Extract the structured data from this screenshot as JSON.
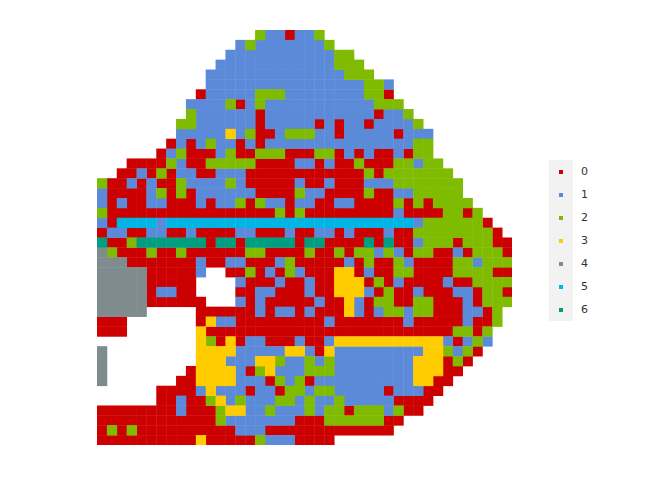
{
  "chart_data": {
    "type": "scatter",
    "marker": "square",
    "tick_labels": false,
    "legend": "right",
    "series": [
      {
        "name": "0",
        "color": "#cc0000"
      },
      {
        "name": "1",
        "color": "#5b8ad8"
      },
      {
        "name": "2",
        "color": "#7fbb00"
      },
      {
        "name": "3",
        "color": "#ffcc00"
      },
      {
        "name": "4",
        "color": "#7f8c8d"
      },
      {
        "name": "5",
        "color": "#00b4e4"
      },
      {
        "name": "6",
        "color": "#009e80"
      }
    ],
    "cells": [
      [
        null,
        null,
        null,
        null,
        null,
        null,
        null,
        null,
        null,
        null,
        null,
        null,
        null,
        null,
        null,
        null,
        2,
        1,
        1,
        0,
        1,
        1,
        2
      ],
      [
        null,
        null,
        null,
        null,
        null,
        null,
        null,
        null,
        null,
        null,
        null,
        null,
        null,
        null,
        1,
        2,
        1,
        1,
        1,
        1,
        1,
        1,
        1,
        2
      ],
      [
        null,
        null,
        null,
        null,
        null,
        null,
        null,
        null,
        null,
        null,
        null,
        null,
        null,
        1,
        1,
        1,
        1,
        1,
        1,
        1,
        1,
        1,
        1,
        1,
        2,
        2
      ],
      [
        null,
        null,
        null,
        null,
        null,
        null,
        null,
        null,
        null,
        null,
        null,
        null,
        1,
        1,
        1,
        1,
        1,
        1,
        1,
        1,
        1,
        1,
        1,
        1,
        2,
        2,
        2
      ],
      [
        null,
        null,
        null,
        null,
        null,
        null,
        null,
        null,
        null,
        null,
        null,
        1,
        1,
        1,
        1,
        1,
        1,
        1,
        1,
        1,
        1,
        1,
        1,
        1,
        1,
        2,
        2,
        2
      ],
      [
        null,
        null,
        null,
        null,
        null,
        null,
        null,
        null,
        null,
        null,
        null,
        1,
        1,
        1,
        1,
        1,
        1,
        1,
        1,
        1,
        1,
        1,
        1,
        1,
        1,
        1,
        1,
        2,
        2,
        1
      ],
      [
        null,
        null,
        null,
        null,
        null,
        null,
        null,
        null,
        null,
        null,
        0,
        1,
        1,
        1,
        1,
        1,
        2,
        2,
        2,
        1,
        1,
        1,
        1,
        1,
        1,
        1,
        1,
        2,
        2,
        0
      ],
      [
        null,
        null,
        null,
        null,
        null,
        null,
        null,
        null,
        null,
        1,
        1,
        1,
        1,
        2,
        0,
        1,
        2,
        1,
        1,
        1,
        1,
        1,
        1,
        1,
        1,
        1,
        1,
        1,
        2,
        2,
        2
      ],
      [
        null,
        null,
        null,
        null,
        null,
        null,
        null,
        null,
        null,
        2,
        1,
        1,
        1,
        1,
        1,
        1,
        0,
        1,
        1,
        1,
        1,
        1,
        1,
        1,
        1,
        1,
        1,
        1,
        0,
        1,
        1,
        2
      ],
      [
        null,
        null,
        null,
        null,
        null,
        null,
        null,
        null,
        2,
        2,
        1,
        1,
        1,
        1,
        1,
        1,
        0,
        1,
        1,
        1,
        1,
        1,
        0,
        1,
        0,
        1,
        1,
        0,
        1,
        1,
        1,
        1,
        2
      ],
      [
        null,
        null,
        null,
        null,
        null,
        null,
        null,
        null,
        1,
        1,
        1,
        1,
        1,
        3,
        1,
        2,
        0,
        0,
        1,
        2,
        2,
        2,
        1,
        1,
        0,
        1,
        1,
        1,
        1,
        1,
        0,
        1,
        1,
        1
      ],
      [
        null,
        null,
        null,
        null,
        null,
        null,
        null,
        0,
        1,
        0,
        1,
        2,
        1,
        1,
        0,
        1,
        0,
        1,
        1,
        1,
        1,
        1,
        1,
        1,
        1,
        1,
        1,
        1,
        1,
        1,
        1,
        1,
        2,
        2
      ],
      [
        null,
        null,
        null,
        null,
        null,
        null,
        0,
        1,
        2,
        0,
        0,
        0,
        1,
        2,
        0,
        0,
        2,
        2,
        2,
        0,
        0,
        0,
        2,
        2,
        0,
        1,
        0,
        1,
        0,
        0,
        1,
        0,
        2,
        2
      ],
      [
        null,
        null,
        null,
        0,
        0,
        0,
        0,
        2,
        1,
        0,
        0,
        2,
        2,
        2,
        2,
        2,
        0,
        0,
        0,
        0,
        1,
        1,
        0,
        1,
        0,
        0,
        2,
        0,
        0,
        0,
        2,
        2,
        1,
        2,
        2
      ],
      [
        null,
        null,
        0,
        0,
        1,
        0,
        2,
        0,
        1,
        1,
        0,
        0,
        1,
        1,
        1,
        0,
        0,
        0,
        0,
        0,
        0,
        0,
        0,
        0,
        0,
        0,
        0,
        2,
        0,
        2,
        2,
        2,
        2,
        2,
        2,
        2
      ],
      [
        2,
        0,
        0,
        1,
        0,
        1,
        0,
        0,
        2,
        1,
        1,
        1,
        1,
        2,
        1,
        0,
        0,
        0,
        0,
        0,
        1,
        0,
        0,
        1,
        0,
        0,
        0,
        1,
        1,
        1,
        2,
        2,
        2,
        2,
        2,
        2,
        2
      ],
      [
        1,
        0,
        0,
        0,
        0,
        1,
        2,
        0,
        2,
        0,
        1,
        1,
        1,
        1,
        1,
        1,
        0,
        0,
        0,
        0,
        2,
        1,
        1,
        0,
        0,
        0,
        0,
        2,
        0,
        0,
        1,
        1,
        2,
        2,
        2,
        2,
        2
      ],
      [
        1,
        0,
        1,
        0,
        0,
        1,
        1,
        0,
        0,
        0,
        1,
        0,
        1,
        1,
        2,
        0,
        2,
        1,
        1,
        0,
        1,
        1,
        0,
        0,
        1,
        1,
        0,
        0,
        0,
        0,
        2,
        0,
        2,
        0,
        2,
        2,
        2,
        2
      ],
      [
        2,
        0,
        0,
        0,
        0,
        0,
        0,
        0,
        0,
        0,
        0,
        0,
        0,
        0,
        0,
        0,
        0,
        0,
        2,
        0,
        2,
        0,
        0,
        0,
        0,
        0,
        0,
        0,
        0,
        0,
        1,
        0,
        0,
        0,
        0,
        2,
        2,
        0,
        2
      ],
      [
        1,
        0,
        5,
        5,
        5,
        5,
        1,
        5,
        5,
        5,
        5,
        5,
        5,
        5,
        5,
        5,
        5,
        5,
        5,
        5,
        5,
        5,
        5,
        5,
        5,
        5,
        5,
        5,
        5,
        5,
        5,
        5,
        1,
        2,
        2,
        2,
        2,
        2,
        2,
        0
      ],
      [
        0,
        1,
        1,
        0,
        0,
        1,
        1,
        0,
        0,
        1,
        0,
        0,
        0,
        0,
        1,
        1,
        0,
        0,
        0,
        1,
        0,
        0,
        1,
        1,
        0,
        1,
        0,
        0,
        0,
        1,
        0,
        0,
        2,
        2,
        2,
        2,
        2,
        2,
        2,
        2,
        0
      ],
      [
        6,
        0,
        0,
        2,
        6,
        6,
        6,
        6,
        6,
        6,
        6,
        0,
        6,
        6,
        0,
        6,
        6,
        6,
        6,
        6,
        0,
        6,
        6,
        0,
        0,
        0,
        0,
        6,
        0,
        6,
        0,
        0,
        1,
        2,
        2,
        2,
        0,
        2,
        2,
        2,
        0,
        0
      ],
      [
        4,
        2,
        0,
        0,
        0,
        2,
        0,
        0,
        2,
        0,
        0,
        0,
        0,
        0,
        0,
        2,
        2,
        0,
        0,
        0,
        0,
        2,
        0,
        0,
        2,
        0,
        2,
        2,
        1,
        2,
        1,
        0,
        2,
        2,
        0,
        0,
        1,
        0,
        2,
        2,
        2,
        0
      ],
      [
        4,
        4,
        4,
        0,
        0,
        0,
        0,
        0,
        0,
        0,
        1,
        0,
        0,
        1,
        1,
        0,
        0,
        0,
        1,
        2,
        0,
        0,
        0,
        0,
        0,
        1,
        0,
        2,
        0,
        0,
        2,
        1,
        0,
        0,
        0,
        0,
        2,
        2,
        1,
        2,
        2,
        2
      ],
      [
        4,
        4,
        4,
        4,
        4,
        0,
        0,
        0,
        0,
        0,
        1,
        null,
        null,
        0,
        0,
        2,
        0,
        1,
        0,
        2,
        1,
        0,
        0,
        0,
        3,
        3,
        0,
        1,
        0,
        0,
        2,
        2,
        0,
        0,
        0,
        0,
        2,
        2,
        2,
        2,
        0,
        0
      ],
      [
        4,
        4,
        4,
        4,
        4,
        0,
        0,
        0,
        0,
        0,
        null,
        null,
        null,
        null,
        1,
        0,
        0,
        0,
        1,
        0,
        0,
        1,
        0,
        0,
        3,
        3,
        3,
        0,
        2,
        0,
        1,
        0,
        0,
        0,
        0,
        1,
        0,
        0,
        2,
        2,
        2,
        2
      ],
      [
        4,
        4,
        4,
        4,
        4,
        0,
        1,
        1,
        0,
        0,
        null,
        null,
        null,
        null,
        0,
        0,
        1,
        1,
        0,
        0,
        0,
        1,
        0,
        0,
        3,
        3,
        3,
        1,
        0,
        2,
        0,
        0,
        1,
        0,
        0,
        0,
        1,
        1,
        0,
        2,
        2,
        0
      ],
      [
        4,
        4,
        4,
        4,
        4,
        0,
        0,
        0,
        0,
        0,
        0,
        null,
        null,
        null,
        1,
        0,
        1,
        0,
        0,
        0,
        0,
        0,
        1,
        0,
        0,
        3,
        1,
        0,
        2,
        2,
        0,
        0,
        2,
        2,
        0,
        0,
        0,
        1,
        0,
        2,
        2,
        2
      ],
      [
        4,
        4,
        4,
        4,
        4,
        null,
        null,
        null,
        null,
        null,
        0,
        0,
        0,
        0,
        0,
        0,
        1,
        0,
        1,
        1,
        0,
        1,
        0,
        0,
        0,
        3,
        1,
        0,
        1,
        2,
        2,
        1,
        2,
        2,
        0,
        0,
        0,
        1,
        1,
        0,
        2
      ],
      [
        0,
        0,
        0,
        null,
        null,
        null,
        null,
        null,
        null,
        null,
        0,
        3,
        1,
        1,
        0,
        0,
        0,
        0,
        0,
        0,
        0,
        0,
        0,
        1,
        0,
        0,
        0,
        0,
        0,
        0,
        0,
        1,
        0,
        0,
        0,
        0,
        0,
        1,
        0,
        0,
        2
      ],
      [
        0,
        0,
        0,
        null,
        null,
        null,
        null,
        null,
        null,
        null,
        3,
        0,
        0,
        0,
        0,
        0,
        0,
        0,
        0,
        0,
        0,
        0,
        0,
        0,
        0,
        0,
        0,
        0,
        0,
        0,
        0,
        0,
        0,
        0,
        0,
        0,
        2,
        2,
        0,
        2
      ],
      [
        null,
        null,
        null,
        null,
        null,
        null,
        null,
        null,
        null,
        null,
        3,
        2,
        0,
        3,
        0,
        1,
        1,
        0,
        0,
        0,
        1,
        0,
        0,
        1,
        3,
        3,
        3,
        3,
        3,
        3,
        3,
        3,
        3,
        3,
        3,
        1,
        0,
        1,
        2,
        1
      ],
      [
        4,
        null,
        null,
        null,
        null,
        null,
        null,
        null,
        null,
        null,
        3,
        3,
        3,
        3,
        1,
        1,
        1,
        1,
        1,
        3,
        3,
        1,
        0,
        3,
        1,
        1,
        1,
        1,
        1,
        1,
        1,
        1,
        1,
        3,
        3,
        2,
        1,
        2,
        0
      ],
      [
        4,
        null,
        null,
        null,
        null,
        null,
        null,
        null,
        null,
        null,
        3,
        3,
        3,
        1,
        1,
        1,
        3,
        3,
        2,
        1,
        1,
        2,
        1,
        2,
        1,
        1,
        1,
        1,
        1,
        1,
        1,
        1,
        3,
        3,
        3,
        0,
        2,
        0
      ],
      [
        4,
        null,
        null,
        null,
        null,
        null,
        null,
        null,
        null,
        0,
        3,
        3,
        3,
        3,
        1,
        0,
        2,
        3,
        1,
        1,
        1,
        2,
        2,
        2,
        1,
        1,
        1,
        1,
        1,
        1,
        1,
        1,
        3,
        3,
        3,
        0,
        0
      ],
      [
        4,
        null,
        null,
        null,
        null,
        null,
        null,
        null,
        0,
        0,
        3,
        3,
        3,
        3,
        1,
        1,
        1,
        0,
        2,
        1,
        2,
        0,
        1,
        1,
        1,
        1,
        1,
        1,
        1,
        1,
        1,
        1,
        3,
        3,
        0,
        0
      ],
      [
        null,
        null,
        null,
        null,
        null,
        null,
        0,
        0,
        0,
        0,
        1,
        3,
        1,
        1,
        1,
        0,
        1,
        1,
        0,
        2,
        2,
        1,
        2,
        2,
        1,
        1,
        1,
        1,
        1,
        0,
        1,
        1,
        1,
        0,
        0
      ],
      [
        null,
        null,
        null,
        null,
        null,
        null,
        0,
        0,
        1,
        0,
        0,
        2,
        3,
        1,
        2,
        1,
        1,
        1,
        2,
        2,
        1,
        2,
        1,
        1,
        2,
        1,
        1,
        1,
        1,
        1,
        0,
        0,
        0,
        0
      ],
      [
        0,
        0,
        0,
        0,
        0,
        0,
        0,
        0,
        1,
        0,
        0,
        0,
        2,
        3,
        3,
        1,
        1,
        2,
        1,
        1,
        1,
        2,
        1,
        2,
        2,
        0,
        2,
        2,
        2,
        1,
        2,
        0,
        0
      ],
      [
        0,
        0,
        0,
        0,
        0,
        0,
        0,
        0,
        0,
        0,
        0,
        0,
        2,
        1,
        1,
        1,
        1,
        1,
        1,
        1,
        0,
        0,
        0,
        2,
        2,
        2,
        2,
        2,
        2,
        0,
        0
      ],
      [
        0,
        2,
        0,
        2,
        0,
        0,
        0,
        0,
        0,
        0,
        0,
        0,
        0,
        0,
        1,
        1,
        1,
        0,
        0,
        0,
        0,
        0,
        0,
        0,
        0,
        0,
        0,
        0,
        0,
        0
      ],
      [
        0,
        0,
        0,
        0,
        0,
        0,
        0,
        0,
        0,
        0,
        3,
        0,
        0,
        0,
        0,
        0,
        2,
        1,
        1,
        1,
        0,
        0,
        0,
        0
      ]
    ]
  }
}
